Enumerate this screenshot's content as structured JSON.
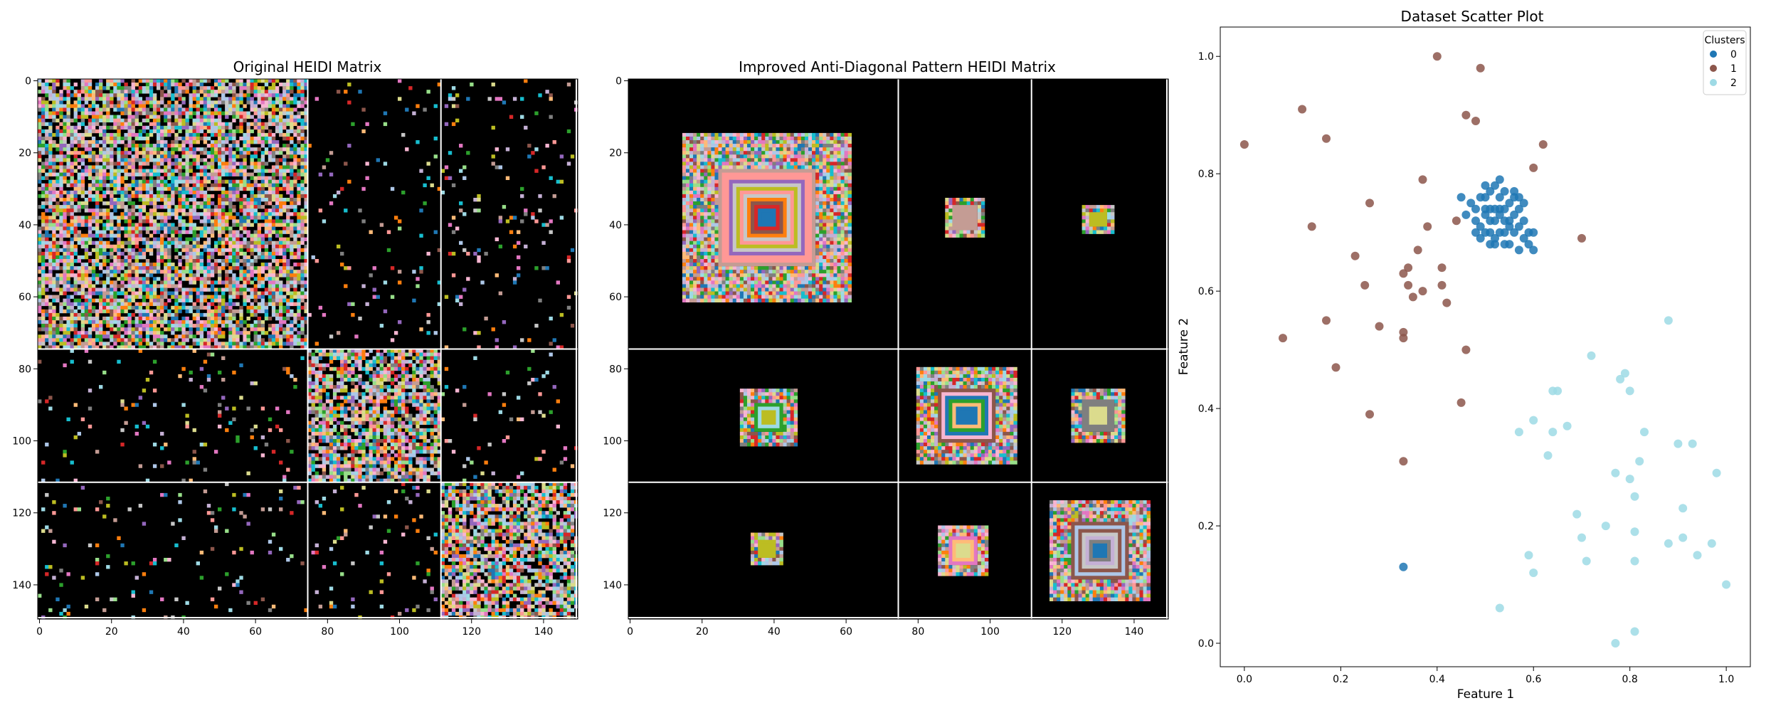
{
  "chart_data": [
    {
      "type": "heatmap",
      "title": "Original HEIDI Matrix",
      "matrix_size": 150,
      "block_boundaries": [
        75,
        112
      ],
      "xticks": [
        "0",
        "20",
        "40",
        "60",
        "80",
        "100",
        "120",
        "140"
      ],
      "yticks": [
        "0",
        "20",
        "40",
        "60",
        "80",
        "100",
        "120",
        "140"
      ],
      "xlim": [
        0,
        150
      ],
      "ylim": [
        150,
        0
      ],
      "background_color": "#000000",
      "pattern": "dense random coloured cells inside diagonal blocks (0-75, 75-112, 112-150), sparse random cells off-diagonal, faint anti-diagonal streaks in diagonal blocks"
    },
    {
      "type": "heatmap",
      "title": "Improved Anti-Diagonal Pattern HEIDI Matrix",
      "matrix_size": 150,
      "block_boundaries": [
        75,
        112
      ],
      "xticks": [
        "0",
        "20",
        "40",
        "60",
        "80",
        "100",
        "120",
        "140"
      ],
      "yticks": [
        "0",
        "20",
        "40",
        "60",
        "80",
        "100",
        "120",
        "140"
      ],
      "xlim": [
        0,
        150
      ],
      "ylim": [
        150,
        0
      ],
      "background_color": "#000000",
      "squares": [
        {
          "block": "0-0",
          "x0": 15,
          "y0": 15,
          "x1": 62,
          "y1": 62,
          "center": "#1f77b4"
        },
        {
          "block": "0-1",
          "x0": 88,
          "y0": 33,
          "x1": 99,
          "y1": 44,
          "center": "#c49c94"
        },
        {
          "block": "0-2",
          "x0": 126,
          "y0": 35,
          "x1": 135,
          "y1": 43,
          "center": "#bcbd22"
        },
        {
          "block": "1-0",
          "x0": 31,
          "y0": 86,
          "x1": 47,
          "y1": 102,
          "center": "#bcbd22"
        },
        {
          "block": "1-1",
          "x0": 80,
          "y0": 80,
          "x1": 108,
          "y1": 107,
          "center": "#1f77b4"
        },
        {
          "block": "1-2",
          "x0": 123,
          "y0": 86,
          "x1": 138,
          "y1": 101,
          "center": "#dbdb8d"
        },
        {
          "block": "2-0",
          "x0": 34,
          "y0": 126,
          "x1": 43,
          "y1": 135,
          "center": "#bcbd22"
        },
        {
          "block": "2-1",
          "x0": 86,
          "y0": 124,
          "x1": 100,
          "y1": 138,
          "center": "#dbdb8d"
        },
        {
          "block": "2-2",
          "x0": 117,
          "y0": 117,
          "x1": 145,
          "y1": 145,
          "center": "#1f77b4"
        }
      ]
    },
    {
      "type": "scatter",
      "title": "Dataset Scatter Plot",
      "xlabel": "Feature 1",
      "ylabel": "Feature 2",
      "xlim": [
        -0.05,
        1.05
      ],
      "ylim": [
        -0.04,
        1.05
      ],
      "xticks": [
        "0.0",
        "0.2",
        "0.4",
        "0.6",
        "0.8",
        "1.0"
      ],
      "yticks": [
        "0.0",
        "0.2",
        "0.4",
        "0.6",
        "0.8",
        "1.0"
      ],
      "legend": {
        "title": "Clusters",
        "position": "upper-right"
      },
      "series": [
        {
          "name": "0",
          "color": "#1f77b4",
          "points": [
            [
              0.52,
              0.78
            ],
            [
              0.54,
              0.77
            ],
            [
              0.53,
              0.74
            ],
            [
              0.5,
              0.73
            ],
            [
              0.48,
              0.72
            ],
            [
              0.51,
              0.7
            ],
            [
              0.55,
              0.71
            ],
            [
              0.57,
              0.74
            ],
            [
              0.56,
              0.76
            ],
            [
              0.49,
              0.69
            ],
            [
              0.52,
              0.68
            ],
            [
              0.58,
              0.69
            ],
            [
              0.54,
              0.72
            ],
            [
              0.5,
              0.76
            ],
            [
              0.47,
              0.75
            ],
            [
              0.53,
              0.7
            ],
            [
              0.56,
              0.73
            ],
            [
              0.51,
              0.74
            ],
            [
              0.49,
              0.71
            ],
            [
              0.55,
              0.68
            ],
            [
              0.53,
              0.76
            ],
            [
              0.52,
              0.72
            ],
            [
              0.5,
              0.7
            ],
            [
              0.57,
              0.71
            ],
            [
              0.46,
              0.73
            ],
            [
              0.48,
              0.7
            ],
            [
              0.58,
              0.72
            ],
            [
              0.54,
              0.74
            ],
            [
              0.51,
              0.77
            ],
            [
              0.55,
              0.75
            ],
            [
              0.59,
              0.7
            ],
            [
              0.52,
              0.69
            ],
            [
              0.5,
              0.74
            ],
            [
              0.56,
              0.7
            ],
            [
              0.53,
              0.73
            ],
            [
              0.49,
              0.76
            ],
            [
              0.51,
              0.72
            ],
            [
              0.54,
              0.7
            ],
            [
              0.45,
              0.76
            ],
            [
              0.6,
              0.67
            ],
            [
              0.59,
              0.68
            ],
            [
              0.57,
              0.67
            ],
            [
              0.51,
              0.68
            ],
            [
              0.53,
              0.79
            ],
            [
              0.58,
              0.75
            ],
            [
              0.6,
              0.7
            ],
            [
              0.52,
              0.74
            ],
            [
              0.55,
              0.72
            ],
            [
              0.5,
              0.78
            ],
            [
              0.56,
              0.77
            ],
            [
              0.48,
              0.74
            ],
            [
              0.54,
              0.68
            ],
            [
              0.57,
              0.76
            ],
            [
              0.33,
              0.13
            ]
          ]
        },
        {
          "name": "1",
          "color": "#8c564b",
          "points": [
            [
              0.4,
              1.0
            ],
            [
              0.49,
              0.98
            ],
            [
              0.12,
              0.91
            ],
            [
              0.46,
              0.9
            ],
            [
              0.48,
              0.89
            ],
            [
              0.17,
              0.86
            ],
            [
              0.0,
              0.85
            ],
            [
              0.62,
              0.85
            ],
            [
              0.6,
              0.81
            ],
            [
              0.37,
              0.79
            ],
            [
              0.26,
              0.75
            ],
            [
              0.44,
              0.72
            ],
            [
              0.38,
              0.71
            ],
            [
              0.14,
              0.71
            ],
            [
              0.7,
              0.69
            ],
            [
              0.36,
              0.67
            ],
            [
              0.23,
              0.66
            ],
            [
              0.41,
              0.64
            ],
            [
              0.34,
              0.64
            ],
            [
              0.33,
              0.63
            ],
            [
              0.25,
              0.61
            ],
            [
              0.41,
              0.61
            ],
            [
              0.34,
              0.61
            ],
            [
              0.37,
              0.6
            ],
            [
              0.35,
              0.59
            ],
            [
              0.42,
              0.58
            ],
            [
              0.17,
              0.55
            ],
            [
              0.28,
              0.54
            ],
            [
              0.33,
              0.53
            ],
            [
              0.33,
              0.52
            ],
            [
              0.08,
              0.52
            ],
            [
              0.46,
              0.5
            ],
            [
              0.19,
              0.47
            ],
            [
              0.45,
              0.41
            ],
            [
              0.26,
              0.39
            ],
            [
              0.33,
              0.31
            ]
          ]
        },
        {
          "name": "2",
          "color": "#9edae5",
          "points": [
            [
              0.88,
              0.55
            ],
            [
              0.72,
              0.49
            ],
            [
              0.79,
              0.46
            ],
            [
              0.78,
              0.45
            ],
            [
              0.8,
              0.43
            ],
            [
              0.64,
              0.43
            ],
            [
              0.65,
              0.43
            ],
            [
              0.6,
              0.38
            ],
            [
              0.67,
              0.37
            ],
            [
              0.57,
              0.36
            ],
            [
              0.64,
              0.36
            ],
            [
              0.83,
              0.36
            ],
            [
              0.9,
              0.34
            ],
            [
              0.93,
              0.34
            ],
            [
              0.63,
              0.32
            ],
            [
              0.82,
              0.31
            ],
            [
              0.98,
              0.29
            ],
            [
              0.77,
              0.29
            ],
            [
              0.8,
              0.28
            ],
            [
              0.81,
              0.25
            ],
            [
              0.91,
              0.23
            ],
            [
              0.69,
              0.22
            ],
            [
              0.75,
              0.2
            ],
            [
              0.81,
              0.19
            ],
            [
              0.7,
              0.18
            ],
            [
              0.91,
              0.18
            ],
            [
              0.88,
              0.17
            ],
            [
              0.97,
              0.17
            ],
            [
              0.94,
              0.15
            ],
            [
              0.59,
              0.15
            ],
            [
              0.71,
              0.14
            ],
            [
              0.81,
              0.14
            ],
            [
              0.6,
              0.12
            ],
            [
              1.0,
              0.1
            ],
            [
              0.53,
              0.06
            ],
            [
              0.81,
              0.02
            ],
            [
              0.77,
              0.0
            ]
          ]
        }
      ]
    }
  ]
}
